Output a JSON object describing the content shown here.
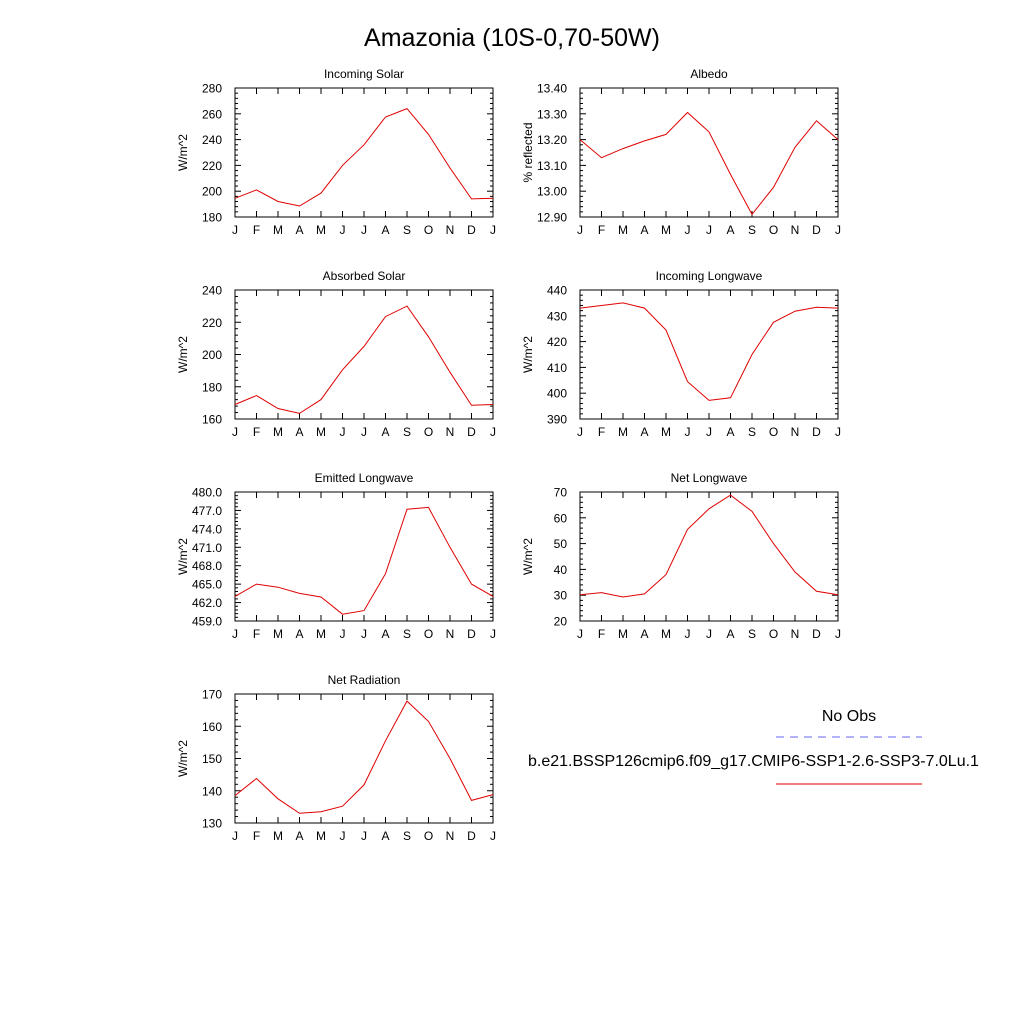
{
  "figure": {
    "title": "Amazonia (10S-0,70-50W)"
  },
  "legend": {
    "obs_label": "No Obs",
    "obs_color": "#6666ee",
    "model_label": "b.e21.BSSP126cmip6.f09_g17.CMIP6-SSP1-2.6-SSP3-7.0Lu.1",
    "model_color": "#e00000"
  },
  "chart_data": [
    {
      "type": "line",
      "title": "Incoming Solar",
      "xlabel": "",
      "ylabel": "W/m^2",
      "categories": [
        "J",
        "F",
        "M",
        "A",
        "M",
        "J",
        "J",
        "A",
        "S",
        "O",
        "N",
        "D",
        "J"
      ],
      "ylim": [
        180,
        280
      ],
      "yticks": [
        "180",
        "200",
        "220",
        "240",
        "260",
        "280"
      ],
      "series": [
        {
          "values": [
            194.5,
            201,
            192,
            188.5,
            198.5,
            220,
            236,
            257.5,
            264,
            244,
            218,
            194,
            194.5
          ]
        }
      ]
    },
    {
      "type": "line",
      "title": "Albedo",
      "xlabel": "",
      "ylabel": "% reflected",
      "categories": [
        "J",
        "F",
        "M",
        "A",
        "M",
        "J",
        "J",
        "A",
        "S",
        "O",
        "N",
        "D",
        "J"
      ],
      "ylim": [
        12.9,
        13.4
      ],
      "yticks": [
        "12.90",
        "13.00",
        "13.10",
        "13.20",
        "13.30",
        "13.40"
      ],
      "series": [
        {
          "values": [
            13.2,
            13.13,
            13.165,
            13.195,
            13.22,
            13.305,
            13.23,
            13.065,
            12.91,
            13.015,
            13.17,
            13.273,
            13.2
          ]
        }
      ]
    },
    {
      "type": "line",
      "title": "Absorbed Solar",
      "xlabel": "",
      "ylabel": "W/m^2",
      "categories": [
        "J",
        "F",
        "M",
        "A",
        "M",
        "J",
        "J",
        "A",
        "S",
        "O",
        "N",
        "D",
        "J"
      ],
      "ylim": [
        160,
        240
      ],
      "yticks": [
        "160",
        "180",
        "200",
        "220",
        "240"
      ],
      "series": [
        {
          "values": [
            169,
            174.5,
            166.5,
            163.5,
            172,
            190.5,
            205,
            223.5,
            230,
            211,
            189,
            168.5,
            169
          ]
        }
      ]
    },
    {
      "type": "line",
      "title": "Incoming Longwave",
      "xlabel": "",
      "ylabel": "W/m^2",
      "categories": [
        "J",
        "F",
        "M",
        "A",
        "M",
        "J",
        "J",
        "A",
        "S",
        "O",
        "N",
        "D",
        "J"
      ],
      "ylim": [
        390,
        440
      ],
      "yticks": [
        "390",
        "400",
        "410",
        "420",
        "430",
        "440"
      ],
      "series": [
        {
          "values": [
            433,
            434,
            435,
            433,
            424.5,
            404.5,
            397.2,
            398.2,
            415,
            427.5,
            431.8,
            433.3,
            433
          ]
        }
      ]
    },
    {
      "type": "line",
      "title": "Emitted Longwave",
      "xlabel": "",
      "ylabel": "W/m^2",
      "categories": [
        "J",
        "F",
        "M",
        "A",
        "M",
        "J",
        "J",
        "A",
        "S",
        "O",
        "N",
        "D",
        "J"
      ],
      "ylim": [
        459,
        480
      ],
      "yticks": [
        "459.0",
        "462.0",
        "465.0",
        "468.0",
        "471.0",
        "474.0",
        "477.0",
        "480.0"
      ],
      "series": [
        {
          "values": [
            463,
            465,
            464.5,
            463.5,
            462.9,
            460.1,
            460.7,
            466.7,
            477.2,
            477.5,
            471,
            465,
            463
          ]
        }
      ]
    },
    {
      "type": "line",
      "title": "Net Longwave",
      "xlabel": "",
      "ylabel": "W/m^2",
      "categories": [
        "J",
        "F",
        "M",
        "A",
        "M",
        "J",
        "J",
        "A",
        "S",
        "O",
        "N",
        "D",
        "J"
      ],
      "ylim": [
        20,
        70
      ],
      "yticks": [
        "20",
        "30",
        "40",
        "50",
        "60",
        "70"
      ],
      "series": [
        {
          "values": [
            30.2,
            31,
            29.3,
            30.5,
            38,
            55.5,
            63.5,
            68.8,
            62.5,
            50,
            39,
            31.5,
            30.2
          ]
        }
      ]
    },
    {
      "type": "line",
      "title": "Net Radiation",
      "xlabel": "",
      "ylabel": "W/m^2",
      "categories": [
        "J",
        "F",
        "M",
        "A",
        "M",
        "J",
        "J",
        "A",
        "S",
        "O",
        "N",
        "D",
        "J"
      ],
      "ylim": [
        130,
        170
      ],
      "yticks": [
        "130",
        "140",
        "150",
        "160",
        "170"
      ],
      "series": [
        {
          "values": [
            138.5,
            143.8,
            137.5,
            133,
            133.5,
            135.2,
            141.8,
            155.5,
            167.8,
            161.5,
            150,
            137,
            138.8
          ]
        }
      ]
    }
  ]
}
